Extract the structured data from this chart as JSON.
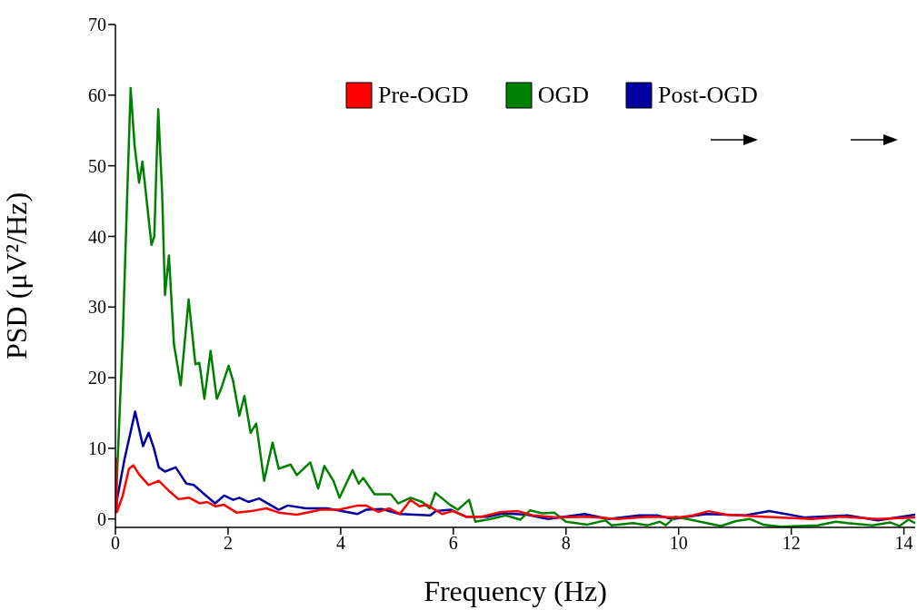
{
  "chart_data": {
    "type": "line",
    "xlabel": "Frequency (Hz)",
    "ylabel": "PSD (μV²/Hz)",
    "xlim": [
      0,
      14.2
    ],
    "ylim": [
      -1.2,
      70
    ],
    "xticks": [
      0,
      2,
      4,
      6,
      8,
      10,
      12,
      14
    ],
    "yticks": [
      0,
      10,
      20,
      30,
      40,
      50,
      60,
      70
    ],
    "legend": "top",
    "grid": false,
    "line_style": "solid",
    "series": [
      {
        "name": "Pre-OGD",
        "color": "#ff0000",
        "x": [
          0,
          0.01,
          0.03,
          0.13,
          0.24,
          0.32,
          0.42,
          0.59,
          0.77,
          0.96,
          1.12,
          1.31,
          1.5,
          1.63,
          1.77,
          1.93,
          2.15,
          2.41,
          2.68,
          2.9,
          3.22,
          3.65,
          3.97,
          4.3,
          4.45,
          4.67,
          4.86,
          5.05,
          5.24,
          5.4,
          5.53,
          5.8,
          5.99,
          6.23,
          6.5,
          6.85,
          7.15,
          7.41,
          7.84,
          8.38,
          8.92,
          9.46,
          10,
          10.26,
          10.53,
          10.85,
          11.5,
          12.36,
          12.9,
          13.54,
          14.2
        ],
        "values": [
          0.8,
          8.5,
          1,
          3.3,
          7.1,
          7.6,
          6.3,
          4.8,
          5.4,
          3.9,
          2.8,
          3,
          2.2,
          2.4,
          1.8,
          2,
          0.9,
          1.1,
          1.5,
          0.9,
          0.6,
          1.3,
          1.3,
          1.9,
          1.9,
          1,
          1.5,
          0.7,
          2.7,
          1.8,
          2,
          0.7,
          1.1,
          0.3,
          0.3,
          1,
          1.1,
          0.5,
          0.2,
          0.3,
          0,
          0.3,
          0.2,
          0.5,
          1.1,
          0.6,
          0.3,
          0,
          0.3,
          0,
          0.2
        ]
      },
      {
        "name": "OGD",
        "color": "#008000",
        "x": [
          0,
          0.13,
          0.21,
          0.27,
          0.34,
          0.42,
          0.48,
          0.64,
          0.69,
          0.76,
          0.83,
          0.88,
          0.95,
          1.04,
          1.16,
          1.3,
          1.42,
          1.49,
          1.58,
          1.69,
          1.8,
          1.88,
          2.01,
          2.09,
          2.2,
          2.29,
          2.4,
          2.5,
          2.64,
          2.79,
          2.9,
          3.11,
          3.22,
          3.46,
          3.6,
          3.71,
          3.87,
          3.98,
          4.21,
          4.32,
          4.4,
          4.6,
          4.89,
          5.02,
          5.24,
          5.45,
          5.58,
          5.68,
          5.94,
          6.08,
          6.28,
          6.39,
          6.66,
          6.93,
          7.19,
          7.36,
          7.58,
          7.79,
          8,
          8.38,
          8.7,
          8.81,
          9.19,
          9.45,
          9.67,
          9.77,
          9.94,
          10.21,
          10.5,
          10.75,
          11.02,
          11.26,
          11.5,
          11.82,
          12.47,
          12.79,
          13,
          13.44,
          13.76,
          13.92,
          14.08,
          14.2
        ],
        "values": [
          0.7,
          25.6,
          46,
          61,
          52.9,
          47.6,
          50.6,
          38.8,
          40,
          58,
          46,
          31.7,
          37.3,
          24.7,
          18.9,
          31.1,
          21.9,
          22.1,
          17,
          23.8,
          17,
          18.5,
          21.7,
          19.5,
          14.6,
          17.4,
          12.2,
          13.5,
          5.4,
          10.8,
          7.1,
          7.7,
          6.2,
          8,
          4.3,
          7.5,
          5.4,
          3,
          6.9,
          5,
          5.8,
          3.5,
          3.5,
          2.2,
          3,
          2.4,
          1.5,
          3.7,
          2,
          1.3,
          2.7,
          -0.4,
          0,
          0.5,
          -0.1,
          1.2,
          0.8,
          0.9,
          -0.4,
          -0.8,
          -0.2,
          -0.9,
          -0.6,
          -0.9,
          -0.4,
          -0.9,
          0.3,
          -0.1,
          -0.6,
          -1,
          -0.3,
          0,
          -0.8,
          -1.1,
          -0.9,
          -0.4,
          -0.6,
          -0.9,
          -0.5,
          -1,
          -0.1,
          -0.6
        ]
      },
      {
        "name": "Post-OGD",
        "color": "#0000a0",
        "x": [
          0,
          0.16,
          0.35,
          0.49,
          0.59,
          0.68,
          0.77,
          0.88,
          1.07,
          1.26,
          1.39,
          1.58,
          1.77,
          1.93,
          2.09,
          2.2,
          2.36,
          2.55,
          2.9,
          3.06,
          3.38,
          3.76,
          4.3,
          4.45,
          4.73,
          5.05,
          5.59,
          5.69,
          5.96,
          6.23,
          6.61,
          6.88,
          7.31,
          7.68,
          8.33,
          8.76,
          9.3,
          9.62,
          9.89,
          10.5,
          11.18,
          11.61,
          12.25,
          13,
          13.54,
          14.2
        ],
        "values": [
          1.5,
          8.4,
          15.2,
          10.3,
          12.2,
          10.1,
          7.3,
          6.7,
          7.3,
          5,
          4.8,
          3.5,
          2.2,
          3.3,
          2.7,
          3,
          2.4,
          2.9,
          1.3,
          1.9,
          1.5,
          1.5,
          0.7,
          1.3,
          1.4,
          0.7,
          0.5,
          1.1,
          1.3,
          0.3,
          0.3,
          0.8,
          0.6,
          0,
          0.7,
          0,
          0.5,
          0.5,
          0,
          0.7,
          0.5,
          1.1,
          0.2,
          0.5,
          -0.2,
          0.6
        ]
      }
    ]
  }
}
